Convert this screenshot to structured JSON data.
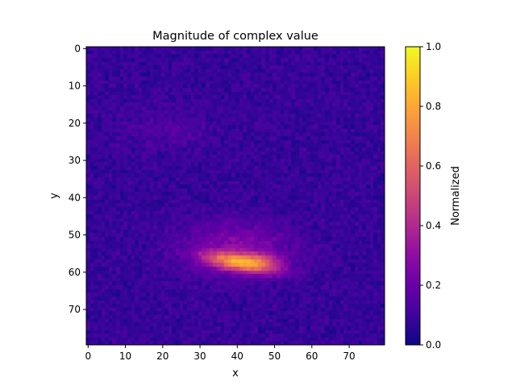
{
  "chart_data": {
    "type": "heatmap",
    "title": "Magnitude of complex value",
    "xlabel": "x",
    "ylabel": "y",
    "x_ticks": [
      "0",
      "10",
      "20",
      "30",
      "40",
      "50",
      "60",
      "70"
    ],
    "y_ticks": [
      "0",
      "10",
      "20",
      "30",
      "40",
      "50",
      "60",
      "70"
    ],
    "xlim": [
      -0.5,
      79.5
    ],
    "ylim": [
      79.5,
      -0.5
    ],
    "grid_size": [
      80,
      80
    ],
    "colormap": "plasma",
    "colorbar": {
      "label": "Normalized",
      "range": [
        0,
        1
      ],
      "ticks": [
        "0.0",
        "0.2",
        "0.4",
        "0.6",
        "0.8",
        "1.0"
      ]
    },
    "background_level": 0.08,
    "features": [
      {
        "name": "bright ellipse core",
        "center": {
          "x": 41,
          "y": 57.5
        },
        "peak": 0.78
      },
      {
        "name": "diffuse halo",
        "center": {
          "x": 40,
          "y": 54
        },
        "peak": 0.32
      },
      {
        "name": "faint upper band",
        "center": {
          "x": 20,
          "y": 22
        },
        "peak": 0.14
      }
    ]
  }
}
